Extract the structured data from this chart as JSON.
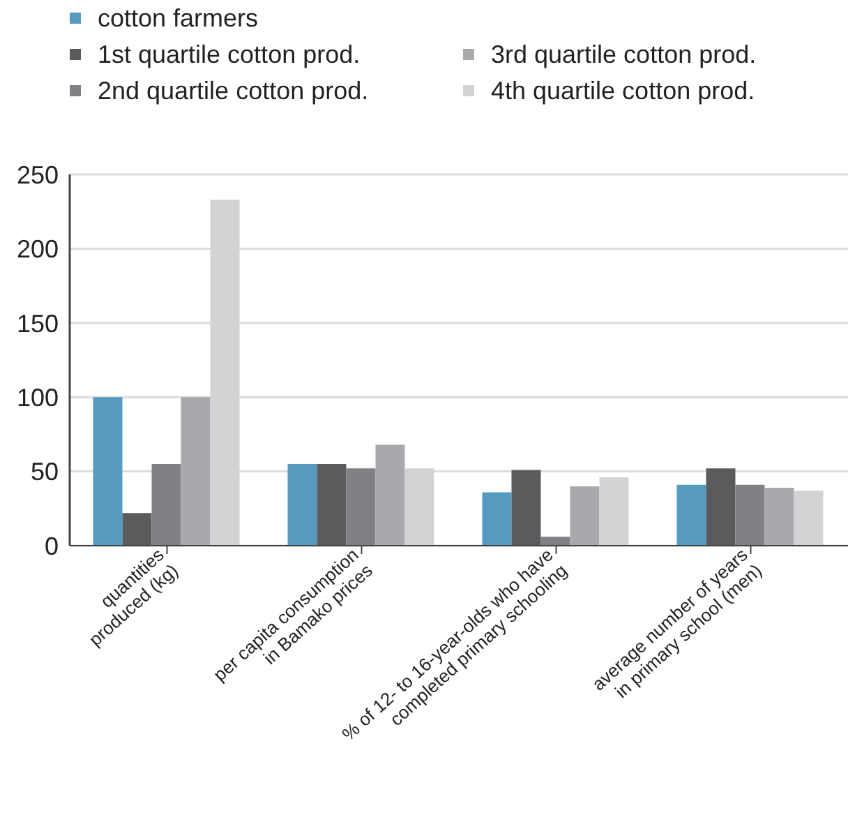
{
  "chart_data": {
    "type": "bar",
    "categories": [
      "quantities\nproduced (kg)",
      "per capita consumption\nin Bamako prices",
      "% of 12- to 16-year-olds who have\ncompleted primary schooling",
      "average number of years\nin primary school (men)"
    ],
    "series": [
      {
        "name": "cotton farmers",
        "color": "#579ac0",
        "values": [
          100,
          55,
          36,
          41
        ]
      },
      {
        "name": "1st quartile cotton prod.",
        "color": "#5a5b5d",
        "values": [
          22,
          55,
          51,
          52
        ]
      },
      {
        "name": "2nd quartile cotton prod.",
        "color": "#808184",
        "values": [
          55,
          52,
          6,
          41
        ]
      },
      {
        "name": "3rd quartile cotton prod.",
        "color": "#a8a9ac",
        "values": [
          100,
          68,
          40,
          39
        ]
      },
      {
        "name": "4th quartile cotton prod.",
        "color": "#d2d3d5",
        "values": [
          233,
          52,
          46,
          37
        ]
      }
    ],
    "ylim": [
      0,
      250
    ],
    "yticks": [
      0,
      50,
      100,
      150,
      200,
      250
    ],
    "grid": "y",
    "legend": "top"
  }
}
